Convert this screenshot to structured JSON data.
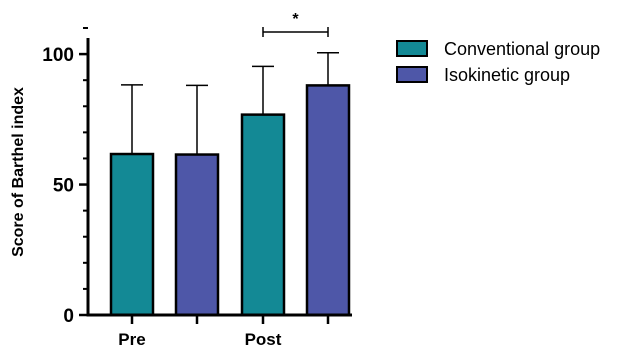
{
  "chart_data": {
    "type": "bar",
    "categories": [
      "Pre",
      "Post"
    ],
    "series": [
      {
        "name": "Conventional group",
        "values": [
          61.7,
          76.8
        ],
        "errors": [
          26.5,
          18.5
        ],
        "color": "#138995"
      },
      {
        "name": "Isokinetic group",
        "values": [
          61.5,
          88.0
        ],
        "errors": [
          26.5,
          12.5
        ],
        "color": "#4e57a8"
      }
    ],
    "ylabel": "Score of Barthel index",
    "xlabel": "",
    "ylim": [
      0,
      110
    ],
    "yticks": [
      0,
      50,
      100
    ],
    "minor_tick_step": 10,
    "grid": false,
    "legend_position": "top-right",
    "significance": {
      "label": "*",
      "between": [
        {
          "series": 0,
          "category": 1
        },
        {
          "series": 1,
          "category": 1
        }
      ]
    }
  }
}
